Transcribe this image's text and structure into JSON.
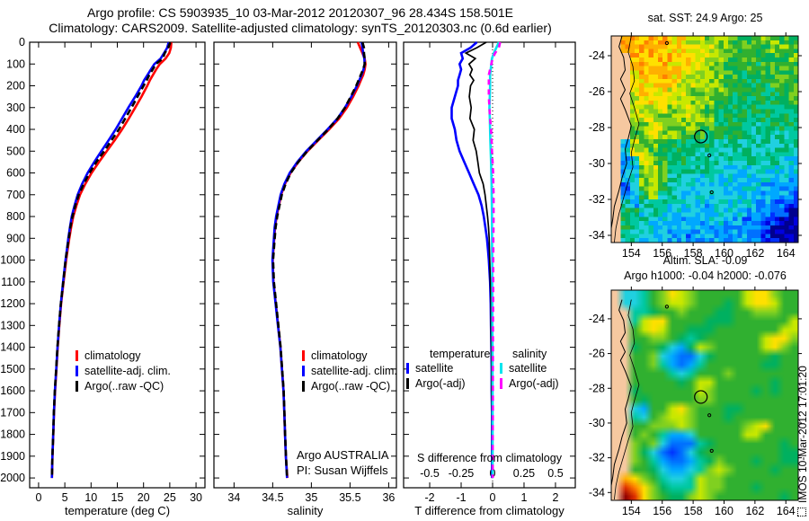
{
  "header": {
    "line1": "Argo profile: CS 5903935_10 03-Mar-2012 20120307_96 28.434S 158.501E",
    "line2": "Climatology: CARS2009. Satellite-adjusted climatology: synTS_20120303.nc (0.6d earlier)"
  },
  "plots": {
    "temperature": {
      "xlabel": "temperature (deg C)",
      "legend": [
        "climatology",
        "satellite-adj. clim.",
        "Argo(..raw -QC)"
      ]
    },
    "salinity": {
      "xlabel": "salinity",
      "legend": [
        "climatology",
        "satellite-adj. clim.",
        "Argo(..raw -QC)"
      ],
      "annotation_line1": "Argo AUSTRALIA",
      "annotation_line2": "PI: Susan Wijffels"
    },
    "difference": {
      "xlabel": "T difference from climatology",
      "s_axis_label": "S difference from climatology",
      "legend_temperature": {
        "title": "temperature",
        "items": [
          "satellite",
          "Argo(-adj)"
        ]
      },
      "legend_salinity": {
        "title": "salinity",
        "items": [
          "satellite",
          "Argo(-adj)"
        ]
      }
    }
  },
  "maps": {
    "sst": {
      "title": "sat. SST: 24.9 Argo: 25"
    },
    "sla": {
      "title_line1": "Altim. SLA: -0.09",
      "title_line2": "Argo h1000: -0.04 h2000: -0.076"
    }
  },
  "watermark": "IMOS 10-Mar-2012 17:01:20",
  "chart_data": [
    {
      "type": "line",
      "name": "temperature-profile",
      "xlabel": "temperature (deg C)",
      "ylabel": "depth (m)",
      "xlim": [
        -1.7,
        31.7
      ],
      "ylim": [
        0,
        2045
      ],
      "xticks": [
        0,
        5,
        10,
        15,
        20,
        25,
        30
      ],
      "yticks": [
        0,
        100,
        200,
        300,
        400,
        500,
        600,
        700,
        800,
        900,
        1000,
        1100,
        1200,
        1300,
        1400,
        1500,
        1600,
        1700,
        1800,
        1900,
        2000
      ],
      "depths": [
        0,
        25,
        50,
        75,
        100,
        125,
        150,
        175,
        200,
        250,
        300,
        350,
        400,
        450,
        500,
        550,
        600,
        650,
        700,
        750,
        800,
        850,
        900,
        950,
        1000,
        1100,
        1200,
        1300,
        1400,
        1500,
        1600,
        1700,
        1800,
        1900,
        2000
      ],
      "series": [
        {
          "name": "climatology",
          "color": "#ff0000",
          "values": [
            25.3,
            25.2,
            24.9,
            24.2,
            23.1,
            22.4,
            21.8,
            21.2,
            20.7,
            19.6,
            18.4,
            17.2,
            15.9,
            14.5,
            13.0,
            11.5,
            10.1,
            8.9,
            7.9,
            7.2,
            6.6,
            6.2,
            5.85,
            5.55,
            5.25,
            4.75,
            4.3,
            3.95,
            3.65,
            3.4,
            3.15,
            2.95,
            2.8,
            2.65,
            2.55
          ]
        },
        {
          "name": "satellite-adj. clim.",
          "color": "#0000ff",
          "values": [
            24.8,
            24.5,
            23.9,
            23.25,
            22.05,
            21.4,
            20.75,
            20.1,
            19.6,
            18.4,
            17.1,
            15.9,
            14.7,
            13.35,
            11.95,
            10.6,
            9.35,
            8.3,
            7.45,
            6.85,
            6.32,
            5.97,
            5.67,
            5.4,
            5.13,
            4.67,
            4.24,
            3.9,
            3.61,
            3.37,
            3.12,
            2.93,
            2.78,
            2.63,
            2.53
          ]
        },
        {
          "name": "Argo(..raw -QC)",
          "color": "#000000",
          "dash": [
            7,
            4
          ],
          "values": [
            25.1,
            24.7,
            24.05,
            23.65,
            22.35,
            21.75,
            21.1,
            20.6,
            20.0,
            18.85,
            17.7,
            16.5,
            15.3,
            13.9,
            12.5,
            11.0,
            9.7,
            8.6,
            7.65,
            7.0,
            6.45,
            6.05,
            5.75,
            5.45,
            5.15,
            4.7,
            4.25,
            3.9,
            3.6,
            3.35,
            3.1,
            2.9,
            2.78,
            2.64,
            2.54
          ]
        }
      ]
    },
    {
      "type": "line",
      "name": "salinity-profile",
      "xlabel": "salinity",
      "ylabel": "depth (m)",
      "xlim": [
        33.74,
        36.1
      ],
      "ylim": [
        0,
        2045
      ],
      "xticks": [
        34,
        34.5,
        35,
        35.5,
        36
      ],
      "yticks": [
        0,
        100,
        200,
        300,
        400,
        500,
        600,
        700,
        800,
        900,
        1000,
        1100,
        1200,
        1300,
        1400,
        1500,
        1600,
        1700,
        1800,
        1900,
        2000
      ],
      "depths": [
        0,
        25,
        50,
        75,
        100,
        125,
        150,
        175,
        200,
        250,
        300,
        350,
        400,
        450,
        500,
        550,
        600,
        650,
        700,
        750,
        800,
        850,
        900,
        950,
        1000,
        1100,
        1200,
        1300,
        1400,
        1500,
        1600,
        1700,
        1800,
        1900,
        2000
      ],
      "series": [
        {
          "name": "climatology",
          "color": "#ff0000",
          "values": [
            35.6,
            35.63,
            35.66,
            35.69,
            35.7,
            35.69,
            35.67,
            35.64,
            35.61,
            35.54,
            35.46,
            35.36,
            35.23,
            35.09,
            34.95,
            34.83,
            34.73,
            34.66,
            34.61,
            34.58,
            34.55,
            34.53,
            34.52,
            34.51,
            34.5,
            34.51,
            34.54,
            34.57,
            34.6,
            34.62,
            34.64,
            34.65,
            34.66,
            34.67,
            34.69
          ]
        },
        {
          "name": "satellite-adj. clim.",
          "color": "#0000ff",
          "values": [
            35.65,
            35.66,
            35.67,
            35.685,
            35.69,
            35.675,
            35.65,
            35.62,
            35.59,
            35.518,
            35.435,
            35.338,
            35.21,
            35.072,
            34.935,
            34.818,
            34.72,
            34.652,
            34.603,
            34.574,
            34.545,
            34.525,
            34.516,
            34.506,
            34.497,
            34.507,
            34.538,
            34.568,
            34.599,
            34.619,
            34.64,
            34.65,
            34.66,
            34.67,
            34.685
          ]
        },
        {
          "name": "Argo(..raw -QC)",
          "color": "#000000",
          "dash": [
            7,
            4
          ],
          "values": [
            35.66,
            35.68,
            35.68,
            35.69,
            35.69,
            35.67,
            35.64,
            35.61,
            35.58,
            35.51,
            35.435,
            35.34,
            35.218,
            35.082,
            34.945,
            34.83,
            34.734,
            34.666,
            34.618,
            34.588,
            34.558,
            34.537,
            34.526,
            34.516,
            34.505,
            34.515,
            34.544,
            34.573,
            34.603,
            34.622,
            34.642,
            34.652,
            34.661,
            34.671,
            34.686
          ]
        }
      ]
    },
    {
      "type": "line",
      "name": "difference-from-climatology",
      "xlabel": "T difference from climatology",
      "s_axis_label": "S difference from climatology",
      "xlim": [
        -2.83,
        2.63
      ],
      "ylim": [
        0,
        2045
      ],
      "xticks": [
        -2,
        -1,
        0,
        1,
        2
      ],
      "yticks": [
        0,
        100,
        200,
        300,
        400,
        500,
        600,
        700,
        800,
        900,
        1000,
        1100,
        1200,
        1300,
        1400,
        1500,
        1600,
        1700,
        1800,
        1900,
        2000
      ],
      "zero_line": 0,
      "s_scale_factor": 4,
      "s_ticks": [
        -0.5,
        -0.25,
        0,
        0.25,
        0.5
      ],
      "depths": [
        0,
        25,
        50,
        75,
        100,
        125,
        150,
        175,
        200,
        250,
        300,
        350,
        400,
        450,
        500,
        550,
        600,
        650,
        700,
        750,
        800,
        850,
        900,
        950,
        1000,
        1100,
        1200,
        1300,
        1400,
        1500,
        1600,
        1700,
        1800,
        1900,
        2000
      ],
      "series": [
        {
          "name": "temperature satellite",
          "color": "#0000ff",
          "values": [
            -0.5,
            -0.7,
            -1.0,
            -0.95,
            -1.05,
            -1.0,
            -1.05,
            -1.1,
            -1.1,
            -1.2,
            -1.3,
            -1.3,
            -1.2,
            -1.15,
            -1.05,
            -0.9,
            -0.75,
            -0.6,
            -0.45,
            -0.35,
            -0.28,
            -0.23,
            -0.18,
            -0.15,
            -0.12,
            -0.08,
            -0.06,
            -0.05,
            -0.04,
            -0.03,
            -0.03,
            -0.02,
            -0.02,
            -0.02,
            -0.02
          ]
        },
        {
          "name": "temperature Argo(-adj)",
          "color": "#000000",
          "width": 1.7,
          "values": [
            -0.2,
            -0.5,
            -0.85,
            -0.55,
            -0.75,
            -0.65,
            -0.72,
            -0.6,
            -0.7,
            -0.74,
            -0.68,
            -0.72,
            -0.58,
            -0.62,
            -0.52,
            -0.47,
            -0.42,
            -0.3,
            -0.24,
            -0.2,
            -0.16,
            -0.13,
            -0.11,
            -0.1,
            -0.09,
            -0.07,
            -0.05,
            -0.05,
            -0.04,
            -0.03,
            -0.03,
            -0.02,
            -0.02,
            -0.01,
            -0.01
          ]
        },
        {
          "name": "salinity satellite",
          "color": "#00e5ee",
          "scale": 4,
          "values": [
            0.05,
            0.03,
            0.01,
            -0.005,
            -0.01,
            -0.015,
            -0.02,
            -0.02,
            -0.02,
            -0.022,
            -0.025,
            -0.022,
            -0.02,
            -0.018,
            -0.015,
            -0.012,
            -0.01,
            -0.008,
            -0.007,
            -0.006,
            -0.005,
            -0.005,
            -0.004,
            -0.004,
            -0.003,
            -0.003,
            -0.002,
            -0.002,
            -0.001,
            -0.001,
            0,
            0,
            0,
            0,
            0
          ]
        },
        {
          "name": "salinity Argo(-adj)",
          "color": "#ff00ff",
          "scale": 4,
          "dash": [
            6,
            5
          ],
          "values": [
            0.06,
            0.05,
            0.02,
            0.0,
            -0.01,
            -0.02,
            -0.03,
            -0.03,
            -0.03,
            -0.03,
            -0.025,
            -0.02,
            -0.012,
            -0.008,
            -0.005,
            0.0,
            0.004,
            0.006,
            0.008,
            0.008,
            0.008,
            0.007,
            0.006,
            0.006,
            0.005,
            0.005,
            0.004,
            0.003,
            0.003,
            0.002,
            0.002,
            0.002,
            0.001,
            0.001,
            0.001
          ]
        }
      ]
    },
    {
      "type": "heatmap",
      "name": "sat-sst-map",
      "title": "sat. SST: 24.9 Argo: 25",
      "lon_range": [
        152.7,
        164.8
      ],
      "lat_range": [
        -22.9,
        -34.4
      ],
      "xticks": [
        154,
        156,
        158,
        160,
        162,
        164
      ],
      "yticks": [
        -24,
        -26,
        -28,
        -30,
        -32,
        -34
      ],
      "marker": [
        158.5,
        -28.5
      ],
      "islands": [
        [
          156.3,
          -23.3
        ],
        [
          159.05,
          -29.55
        ],
        [
          159.2,
          -31.6
        ]
      ],
      "coastline": [
        [
          153.4,
          -22.9
        ],
        [
          153.2,
          -23.5
        ],
        [
          153.5,
          -24.1
        ],
        [
          153.6,
          -24.8
        ],
        [
          153.3,
          -25.3
        ],
        [
          153.6,
          -25.9
        ],
        [
          153.3,
          -26.4
        ],
        [
          153.6,
          -27.0
        ],
        [
          154.0,
          -27.9
        ],
        [
          153.8,
          -28.6
        ],
        [
          153.6,
          -29.2
        ],
        [
          153.7,
          -30.0
        ],
        [
          153.4,
          -30.8
        ],
        [
          153.2,
          -31.5
        ],
        [
          152.9,
          -32.4
        ],
        [
          152.8,
          -33.1
        ],
        [
          152.7,
          -33.6
        ]
      ],
      "shelf_line": [
        [
          154.0,
          -22.9
        ],
        [
          153.8,
          -23.8
        ],
        [
          154.1,
          -24.6
        ],
        [
          154.2,
          -25.4
        ],
        [
          153.9,
          -26.1
        ],
        [
          154.2,
          -26.9
        ],
        [
          154.5,
          -27.8
        ],
        [
          154.2,
          -28.7
        ],
        [
          154.0,
          -29.4
        ],
        [
          154.1,
          -30.2
        ],
        [
          153.8,
          -31.0
        ],
        [
          153.5,
          -31.9
        ],
        [
          153.2,
          -32.8
        ],
        [
          153.0,
          -33.6
        ],
        [
          152.9,
          -34.4
        ]
      ],
      "palette": [
        "#00008f",
        "#0000e0",
        "#0030ff",
        "#0070ff",
        "#00a8ff",
        "#20d0e0",
        "#00c8a0",
        "#00b060",
        "#30b030",
        "#80d020",
        "#c8e800",
        "#ffe000",
        "#ffb000",
        "#ff8000",
        "#e03000",
        "#900000"
      ],
      "land_char": "L",
      "land_color": "#f6c8a0",
      "grid": [
        "Lcccccbbaa9998889988",
        "Lcccccbbbaa998888998",
        "LLcccccbbaa988888889",
        "LLccccbbba9988878888",
        "LLbcccbba9a988778888",
        "LLbbbbbaa99987777888",
        "LLabbbaa99a987777788",
        "LLaabaa9999877777778",
        "LLaaaa99a98777777777",
        "LL9aa999a99777767777",
        "LL99aa99988777667777",
        "LL89a998887777666667",
        "L5a99887777666666666",
        "L5aa8877766666666666",
        "L45a9877666666666655",
        "L459a876666655555555",
        "L459a866655555555554",
        "L349a766555555554444",
        "L3479665555555444443",
        "L6467655554555544332",
        "L7756555544555443321",
        "L7665554445544332210",
        "L7665544444444332100",
        "L6655544344444432100"
      ]
    },
    {
      "type": "heatmap",
      "name": "altim-sla-map",
      "title": "Altim. SLA: -0.09 Argo h1000: -0.04 h2000: -0.076",
      "lon_range": [
        152.7,
        164.8
      ],
      "lat_range": [
        -22.35,
        -34.45
      ],
      "xticks": [
        154,
        156,
        158,
        160,
        162,
        164
      ],
      "yticks": [
        -24,
        -26,
        -28,
        -30,
        -32,
        -34
      ],
      "marker": [
        158.5,
        -28.5
      ],
      "islands": [
        [
          156.3,
          -23.3
        ],
        [
          159.05,
          -29.55
        ],
        [
          159.2,
          -31.6
        ]
      ],
      "palette": [
        "#00008f",
        "#0000e0",
        "#0030ff",
        "#0070ff",
        "#00a8ff",
        "#20d0e0",
        "#00c8a0",
        "#00b060",
        "#30b030",
        "#80d020",
        "#c8e800",
        "#ffe000",
        "#ffb000",
        "#ff8000",
        "#e03000",
        "#900000"
      ],
      "land_char": "L",
      "land_color": "#f6c8a0",
      "grid": [
        "L55689ba988888abb988",
        "L55689aa988878abba88",
        "LL667889888778899988",
        "LL6abb8888777888888a",
        "LL8aba887778888888aa",
        "LL88998767888888abb9",
        "LL7887547a988888ab98",
        "LL889543357888888788",
        "LL889643468888887788",
        "LL888865688898888888",
        "LL8888878aa888888788",
        "LL7888888a9888878788",
        "LL878888899888888888",
        "LL5488ab988877888888",
        "LL6589aa988878888888",
        "LL88999a9888889ab888",
        "LL898644588888aa8888",
        "LL989533367888888878",
        "LL975323578888888877",
        "LL986433467988878877",
        "LL887544569a98888788",
        "Lcb986556a9988888888",
        "Ledb97666a9988878888",
        "Lfeb98779a9888888878"
      ]
    }
  ]
}
